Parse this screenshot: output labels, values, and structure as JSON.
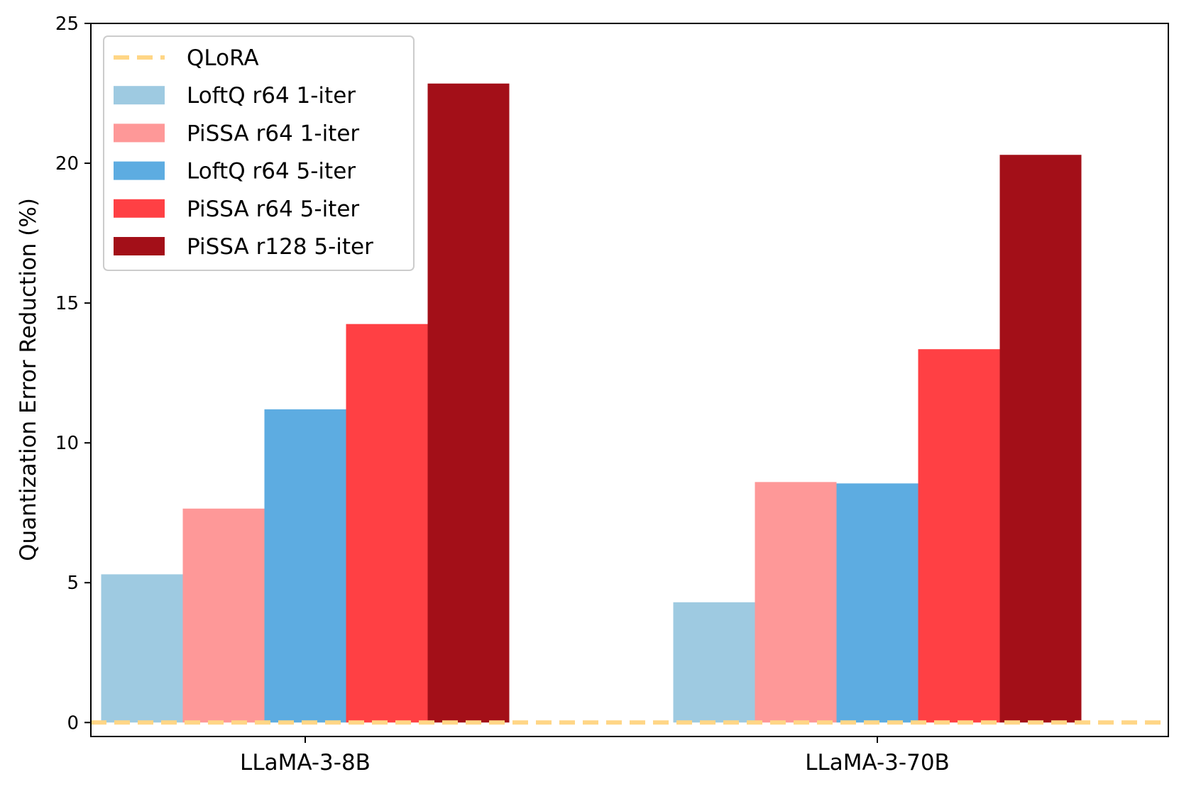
{
  "chart_data": {
    "type": "bar",
    "title": "",
    "xlabel": "",
    "ylabel": "Quantization Error Reduction (%)",
    "categories": [
      "LLaMA-3-8B",
      "LLaMA-3-70B"
    ],
    "ylim": [
      -0.5,
      25
    ],
    "yticks": [
      0,
      5,
      10,
      15,
      20,
      25
    ],
    "baseline": {
      "name": "QLoRA",
      "value": 0,
      "color": "#ffd686",
      "style": "dashed"
    },
    "series": [
      {
        "name": "LoftQ r64 1-iter",
        "color": "#9ecae1",
        "values": [
          5.3,
          4.3
        ]
      },
      {
        "name": "PiSSA r64 1-iter",
        "color": "#fe9898",
        "values": [
          7.65,
          8.6
        ]
      },
      {
        "name": "LoftQ r64 5-iter",
        "color": "#5dace1",
        "values": [
          11.2,
          8.55
        ]
      },
      {
        "name": "PiSSA r64 5-iter",
        "color": "#ff4044",
        "values": [
          14.25,
          13.35
        ]
      },
      {
        "name": "PiSSA r128 5-iter",
        "color": "#a30f18",
        "values": [
          22.85,
          20.3
        ]
      }
    ],
    "legend_position": "top-left"
  }
}
